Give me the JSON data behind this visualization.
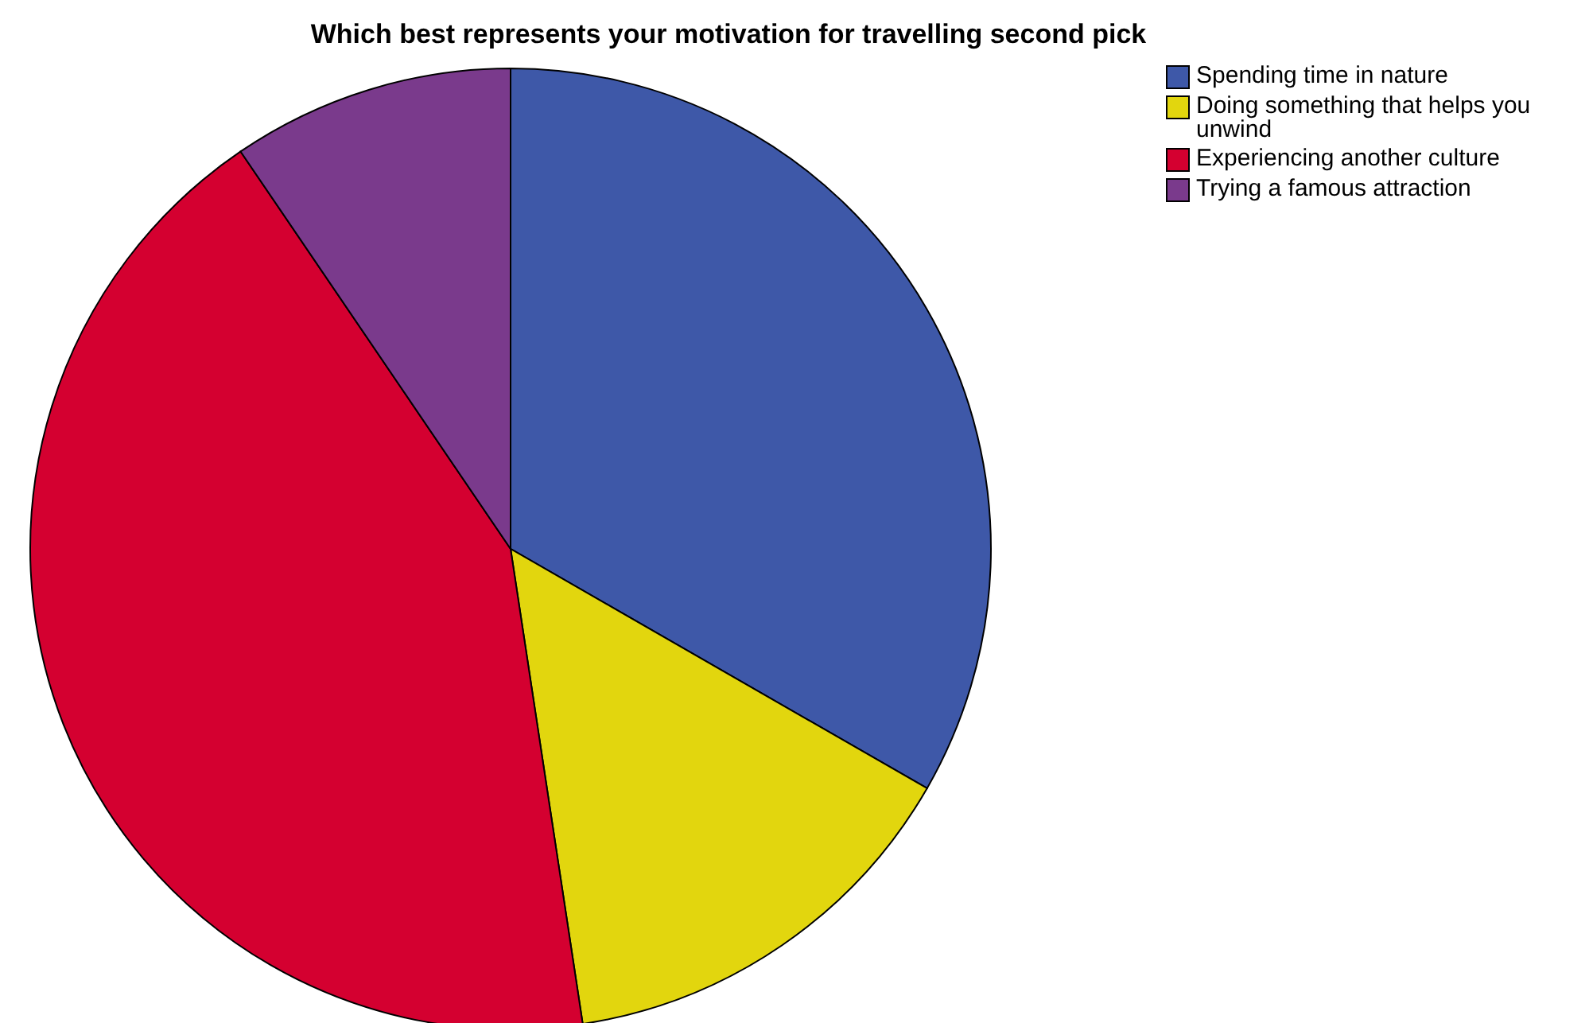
{
  "chart_data": {
    "type": "pie",
    "title": "Which best represents your motivation for travelling second pick",
    "categories": [
      "Spending time in nature",
      "Doing something that helps you unwind",
      "Experiencing another culture",
      "Trying a famous attraction"
    ],
    "values": [
      33.3,
      14.3,
      42.9,
      9.5
    ],
    "colors": [
      "#3e58a8",
      "#e2d60e",
      "#d40030",
      "#7a3a8c"
    ],
    "legend": "top right"
  }
}
